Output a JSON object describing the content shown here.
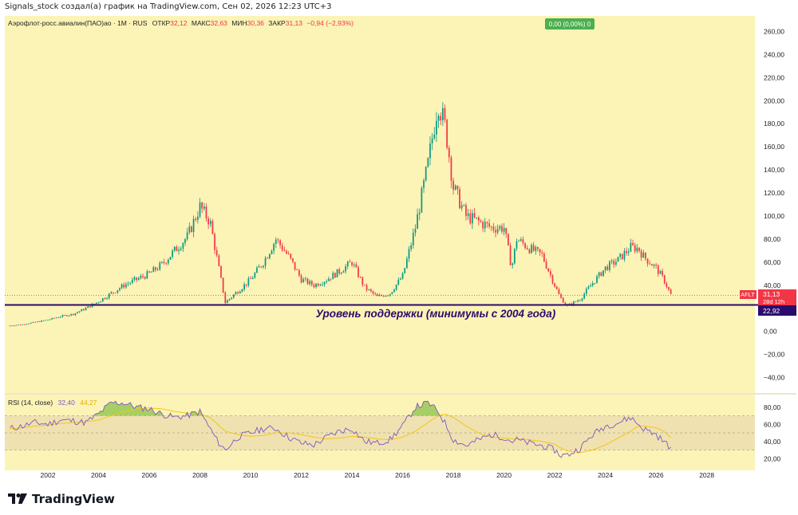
{
  "header": {
    "credit": "Signals_stock создал(а) график на TradingView.com, Сен 02, 2026 12:23 UTC+3"
  },
  "legend": {
    "symbol": "Аэрофлот-росс.авиалин(ПАО)ао · 1М · RUS",
    "open_label": "ОТКР",
    "open": "32,12",
    "high_label": "МАКС",
    "high": "32,63",
    "low_label": "МИН",
    "low": "30,36",
    "close_label": "ЗАКР",
    "close": "31,13",
    "change": "−0,94 (−2,93%)"
  },
  "badge": {
    "text": "0,00 (0,00%) 0"
  },
  "price_labels": {
    "ticker": "AFLT",
    "last": "31,13",
    "countdown": "28d 12h",
    "support": "22,92"
  },
  "annotation": {
    "text": "Уровень поддержки (минимумы с 2004 года)"
  },
  "rsi": {
    "label": "RSI (14, close)",
    "value": "32,40",
    "ma": "44,27",
    "upper": 70,
    "lower": 30,
    "mid": 50
  },
  "footer": {
    "brand": "TradingView"
  },
  "colors": {
    "up": "#089981",
    "down": "#f23645",
    "bg": "#fcf3b6",
    "support_line": "#2b0b6b",
    "rsi_line": "#7e57c2",
    "rsi_ma": "#f5c518"
  },
  "chart_data": [
    {
      "type": "candlestick",
      "title": "Аэрофлот-росс.авиалин(ПАО)ао · 1М · RUS",
      "ylim": [
        -50,
        270
      ],
      "yticks": [
        -40,
        -20,
        0,
        20,
        40,
        60,
        80,
        100,
        120,
        140,
        160,
        180,
        200,
        220,
        240,
        260
      ],
      "ytick_labels": [
        "−40,00",
        "−20,00",
        "0,00",
        "20,00",
        "40,00",
        "60,00",
        "80,00",
        "100,00",
        "120,00",
        "140,00",
        "160,00",
        "180,00",
        "200,00",
        "220,00",
        "240,00",
        "260,00"
      ],
      "xticks": [
        "2002",
        "2004",
        "2006",
        "2008",
        "2010",
        "2012",
        "2014",
        "2016",
        "2018",
        "2020",
        "2022",
        "2024",
        "2026",
        "2028"
      ],
      "xlim": [
        2000.3,
        2029.9
      ],
      "support_level": 22.92,
      "last_close": 31.13,
      "price_path": {
        "x": [
          2000.5,
          2001.0,
          2001.5,
          2002.0,
          2002.5,
          2003.0,
          2003.5,
          2004.0,
          2004.5,
          2005.0,
          2005.5,
          2006.0,
          2006.5,
          2007.0,
          2007.5,
          2008.0,
          2008.4,
          2008.7,
          2009.0,
          2009.5,
          2010.0,
          2010.5,
          2011.0,
          2011.5,
          2012.0,
          2012.5,
          2013.0,
          2013.5,
          2014.0,
          2014.5,
          2015.0,
          2015.5,
          2016.0,
          2016.5,
          2017.0,
          2017.4,
          2017.7,
          2018.0,
          2018.5,
          2019.0,
          2019.5,
          2020.0,
          2020.3,
          2020.5,
          2021.0,
          2021.5,
          2022.0,
          2022.2,
          2022.5,
          2023.0,
          2023.5,
          2024.0,
          2024.5,
          2025.0,
          2025.3,
          2025.5,
          2026.0,
          2026.3,
          2026.6
        ],
        "y": [
          5,
          6,
          8,
          10,
          13,
          15,
          20,
          26,
          33,
          40,
          45,
          50,
          58,
          70,
          82,
          108,
          95,
          60,
          25,
          35,
          45,
          60,
          80,
          65,
          45,
          40,
          45,
          52,
          60,
          38,
          30,
          33,
          48,
          90,
          145,
          200,
          175,
          125,
          100,
          95,
          90,
          90,
          55,
          80,
          72,
          66,
          40,
          30,
          22,
          28,
          42,
          55,
          62,
          73,
          72,
          65,
          55,
          45,
          31
        ]
      },
      "rsi_path": {
        "y": [
          55,
          58,
          62,
          60,
          65,
          64,
          62,
          72,
          85,
          85,
          80,
          78,
          72,
          68,
          70,
          75,
          55,
          40,
          30,
          45,
          50,
          55,
          55,
          45,
          38,
          36,
          45,
          52,
          55,
          40,
          38,
          42,
          58,
          80,
          85,
          75,
          60,
          42,
          35,
          42,
          48,
          45,
          40,
          42,
          38,
          35,
          30,
          24,
          24,
          32,
          48,
          58,
          62,
          68,
          60,
          55,
          48,
          40,
          32
        ]
      },
      "rsi_ma_path": {
        "y": [
          55,
          56,
          58,
          59,
          61,
          62,
          63,
          65,
          70,
          75,
          78,
          79,
          78,
          75,
          73,
          72,
          68,
          60,
          52,
          48,
          46,
          47,
          50,
          50,
          48,
          45,
          43,
          44,
          46,
          45,
          43,
          42,
          45,
          52,
          62,
          70,
          72,
          68,
          58,
          50,
          45,
          44,
          43,
          43,
          42,
          40,
          37,
          33,
          29,
          27,
          30,
          36,
          44,
          52,
          58,
          58,
          56,
          52,
          44.27
        ]
      }
    }
  ]
}
